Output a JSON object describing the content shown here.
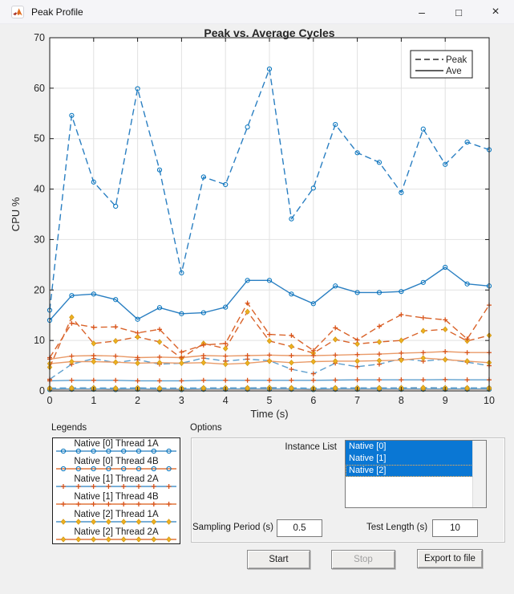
{
  "window": {
    "title": "Peak Profile",
    "controls": {
      "minimize": "–",
      "maximize": "□",
      "close": "×"
    }
  },
  "palette": {
    "blue": "#2a7fc2",
    "blue_soft": "#5d9fce",
    "orange": "#d9632a",
    "orange_soft": "#e99a68",
    "marker_circle": "#0072BD",
    "marker_plus": "#D95319",
    "marker_diamond_fill": "#EDB120",
    "marker_diamond_edge": "#cf9414",
    "axis": "#1a1a1a",
    "grid": "#e2e2e2",
    "selection_blue": "#0a77d4"
  },
  "chart_data": {
    "type": "line",
    "title": "Peak vs. Average Cycles",
    "xlabel": "Time (s)",
    "ylabel": "CPU %",
    "xlim": [
      0,
      10
    ],
    "ylim": [
      0,
      70
    ],
    "xticks": [
      0,
      1,
      2,
      3,
      4,
      5,
      6,
      7,
      8,
      9,
      10
    ],
    "yticks": [
      0,
      10,
      20,
      30,
      40,
      50,
      60,
      70
    ],
    "grid": true,
    "legend": {
      "position": "top-right",
      "entries": [
        {
          "label": "Peak",
          "style": "dashed"
        },
        {
          "label": "Ave",
          "style": "solid"
        }
      ]
    },
    "x": [
      0,
      0.5,
      1,
      1.5,
      2,
      2.5,
      3,
      3.5,
      4,
      4.5,
      5,
      5.5,
      6,
      6.5,
      7,
      7.5,
      8,
      8.5,
      9,
      9.5,
      10
    ],
    "series": [
      {
        "name": "Native [0] Thread 4B Ave",
        "line": "solid",
        "color": "orange_soft",
        "marker": "circle",
        "values": [
          0.25,
          0.3,
          0.3,
          0.25,
          0.3,
          0.25,
          0.25,
          0.3,
          0.3,
          0.3,
          0.3,
          0.3,
          0.25,
          0.3,
          0.3,
          0.3,
          0.3,
          0.3,
          0.3,
          0.3,
          0.3
        ]
      },
      {
        "name": "Native [0] Thread 4B Peak",
        "line": "dashed",
        "color": "orange",
        "marker": "circle",
        "values": [
          0.45,
          0.5,
          0.5,
          0.45,
          0.5,
          0.45,
          0.45,
          0.5,
          0.5,
          0.5,
          0.5,
          0.5,
          0.45,
          0.5,
          0.5,
          0.5,
          0.5,
          0.5,
          0.5,
          0.5,
          0.5
        ]
      },
      {
        "name": "Native [2] Thread 1A Ave",
        "line": "solid",
        "color": "blue_soft",
        "marker": "diamond",
        "values": [
          0.35,
          0.4,
          0.4,
          0.35,
          0.4,
          0.35,
          0.35,
          0.4,
          0.4,
          0.4,
          0.4,
          0.4,
          0.35,
          0.4,
          0.4,
          0.4,
          0.4,
          0.4,
          0.4,
          0.4,
          0.4
        ]
      },
      {
        "name": "Native [2] Thread 1A Peak",
        "line": "dashed",
        "color": "blue_soft",
        "marker": "diamond",
        "values": [
          0.55,
          0.6,
          0.6,
          0.55,
          0.6,
          0.55,
          0.55,
          0.6,
          0.6,
          0.6,
          0.65,
          0.6,
          0.55,
          0.6,
          0.6,
          0.6,
          0.6,
          0.65,
          0.6,
          0.6,
          0.6
        ]
      },
      {
        "name": "Native [1] Thread 2A Ave",
        "line": "solid",
        "color": "blue_soft",
        "marker": "plus",
        "values": [
          2.0,
          2.1,
          2.1,
          2.1,
          2.0,
          2.0,
          2.0,
          2.1,
          2.1,
          2.1,
          2.1,
          2.1,
          2.1,
          2.15,
          2.2,
          2.2,
          2.2,
          2.2,
          2.25,
          2.2,
          2.2
        ]
      },
      {
        "name": "Native [1] Thread 2A Peak",
        "line": "dashed",
        "color": "blue_soft",
        "marker": "plus",
        "values": [
          2.3,
          5.3,
          6.4,
          5.6,
          6.2,
          5.3,
          5.5,
          6.5,
          5.9,
          6.3,
          6.0,
          4.3,
          3.4,
          5.5,
          4.8,
          5.3,
          6.4,
          5.9,
          6.3,
          5.7,
          5.0
        ]
      },
      {
        "name": "Native [2] Thread 2A Ave",
        "line": "solid",
        "color": "orange_soft",
        "marker": "diamond",
        "values": [
          5.4,
          5.8,
          5.8,
          5.7,
          5.5,
          5.6,
          5.5,
          5.6,
          5.3,
          5.5,
          5.9,
          5.6,
          5.8,
          5.9,
          5.9,
          6.0,
          6.1,
          6.5,
          6.2,
          5.9,
          5.6
        ]
      },
      {
        "name": "Native [2] Thread 2A Peak",
        "line": "dashed",
        "color": "orange",
        "marker": "diamond",
        "values": [
          4.7,
          14.6,
          9.4,
          9.9,
          10.7,
          9.7,
          6.5,
          9.4,
          8.4,
          15.7,
          9.9,
          8.8,
          7.5,
          10.2,
          9.3,
          9.7,
          10.0,
          11.9,
          12.2,
          9.9,
          11.0
        ]
      },
      {
        "name": "Native [1] Thread 4B Ave",
        "line": "solid",
        "color": "orange_soft",
        "marker": "plus",
        "values": [
          6.3,
          6.9,
          7.0,
          6.9,
          6.6,
          6.7,
          6.6,
          7.0,
          6.9,
          7.0,
          7.1,
          7.0,
          7.0,
          7.1,
          7.2,
          7.3,
          7.5,
          7.6,
          7.8,
          7.6,
          7.6
        ]
      },
      {
        "name": "Native [1] Thread 4B Peak",
        "line": "dashed",
        "color": "orange",
        "marker": "plus",
        "values": [
          6.6,
          13.4,
          12.6,
          12.7,
          11.5,
          12.2,
          7.7,
          9.1,
          9.4,
          17.4,
          11.2,
          11.0,
          8.0,
          12.5,
          10.1,
          12.8,
          15.1,
          14.5,
          14.1,
          10.3,
          17.0
        ]
      },
      {
        "name": "Native [0] Thread 1A Ave",
        "line": "solid",
        "color": "blue",
        "marker": "circle",
        "values": [
          14.0,
          18.9,
          19.2,
          18.1,
          14.2,
          16.5,
          15.3,
          15.5,
          16.6,
          21.9,
          21.9,
          19.2,
          17.3,
          20.8,
          19.5,
          19.5,
          19.7,
          21.5,
          24.5,
          21.2,
          20.8
        ]
      },
      {
        "name": "Native [0] Thread 1A Peak",
        "line": "dashed",
        "color": "blue",
        "marker": "circle",
        "values": [
          16.0,
          54.6,
          41.4,
          36.6,
          59.9,
          43.8,
          23.4,
          42.4,
          40.9,
          52.3,
          63.8,
          34.1,
          40.2,
          52.8,
          47.2,
          45.3,
          39.3,
          51.9,
          44.9,
          49.3,
          47.8
        ]
      }
    ]
  },
  "legends_panel": {
    "title": "Legends",
    "rows": [
      {
        "label": "Native [0] Thread 1A",
        "color": "blue",
        "marker": "circle"
      },
      {
        "label": "Native [0] Thread 4B",
        "color": "orange",
        "marker": "circle"
      },
      {
        "label": "Native [1] Thread 2A",
        "color": "blue",
        "marker": "plus"
      },
      {
        "label": "Native [1] Thread 4B",
        "color": "orange",
        "marker": "plus"
      },
      {
        "label": "Native [2] Thread 1A",
        "color": "blue",
        "marker": "diamond"
      },
      {
        "label": "Native [2] Thread 2A",
        "color": "orange",
        "marker": "diamond"
      }
    ]
  },
  "options_panel": {
    "title": "Options",
    "instance_list_label": "Instance List",
    "instances": [
      "Native [0]",
      "Native [1]",
      "Native [2]"
    ],
    "sampling_label": "Sampling Period (s)",
    "sampling_value": "0.5",
    "test_label": "Test Length (s)",
    "test_value": "10"
  },
  "buttons": [
    {
      "label": "Start",
      "enabled": true
    },
    {
      "label": "Stop",
      "enabled": false
    },
    {
      "label": "Export to file",
      "enabled": true
    }
  ]
}
